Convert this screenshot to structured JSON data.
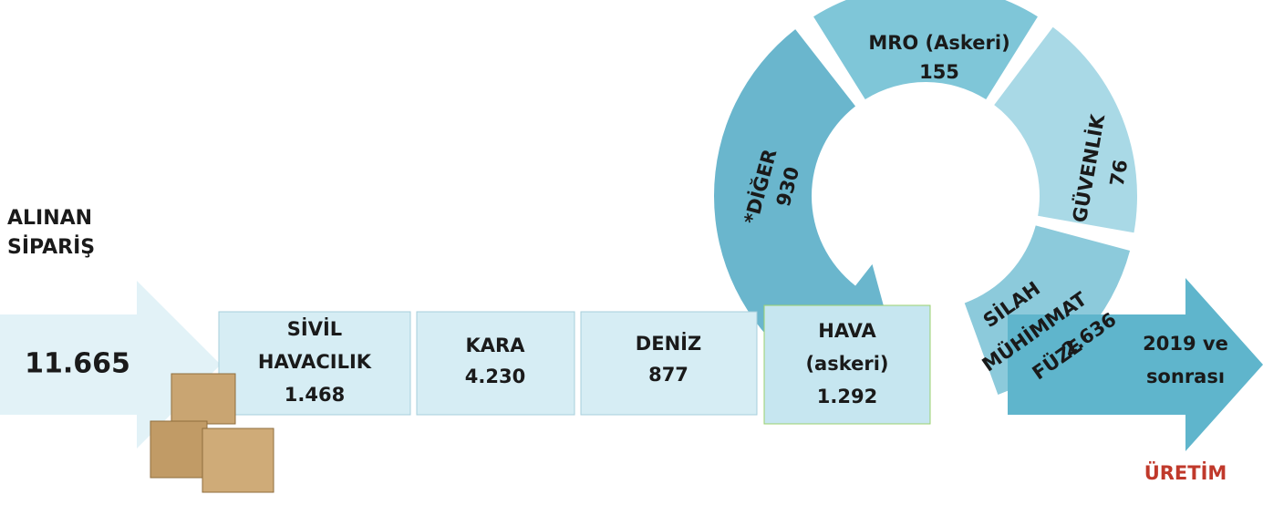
{
  "order": {
    "label_lines": [
      "ALINAN",
      "SİPARİŞ"
    ],
    "total": "11.665"
  },
  "segments": [
    {
      "label_lines": [
        "SİVİL",
        "HAVACILIK"
      ],
      "value": "1.468"
    },
    {
      "label_lines": [
        "KARA"
      ],
      "value": "4.230"
    },
    {
      "label_lines": [
        "DENİZ"
      ],
      "value": "877"
    },
    {
      "label_lines": [
        "HAVA",
        "(askeri)"
      ],
      "value": "1.292"
    }
  ],
  "ring": [
    {
      "label_lines": [
        "*DİĞER"
      ],
      "value": "930"
    },
    {
      "label_lines": [
        "MRO (Askeri)"
      ],
      "value": "155"
    },
    {
      "label_lines": [
        "GÜVENLİK"
      ],
      "value": "76"
    },
    {
      "label_lines": [
        "SİLAH",
        "MÜHİMMAT",
        "FÜZE"
      ],
      "value": "2.636"
    }
  ],
  "output": {
    "label_lines": [
      "2019 ve",
      "sonrası"
    ],
    "caption": "ÜRETİM"
  }
}
